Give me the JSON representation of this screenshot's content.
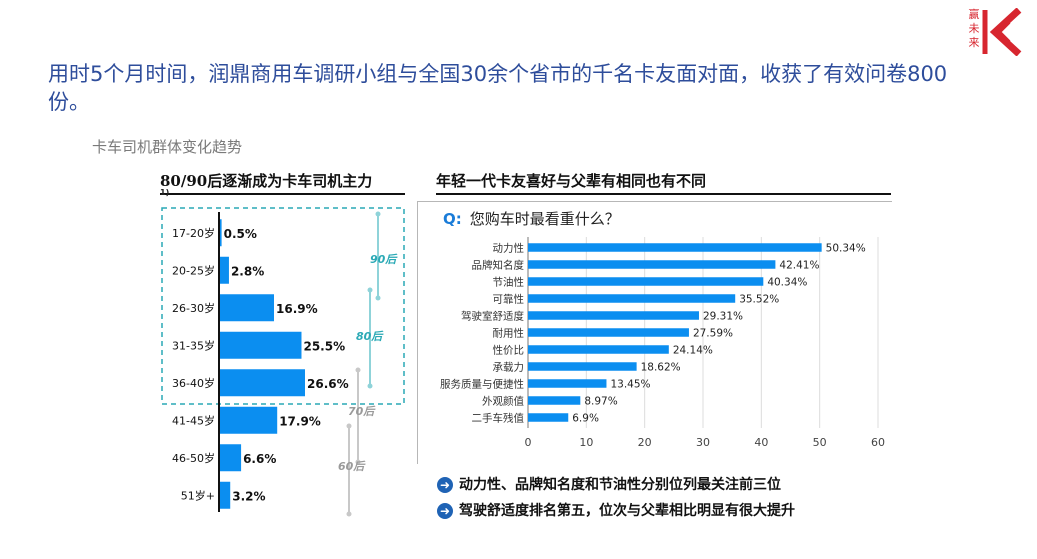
{
  "headline": "用时5个月时间，润鼎商用车调研小组与全国30余个省市的千名卡友面对面，收获了有效问卷800份。",
  "subtitle": "卡车司机群体变化趋势",
  "logo": {
    "text": "赢未来",
    "color": "#d7262f"
  },
  "left_panel": {
    "title": "80/90后逐渐成为卡车司机主力",
    "footnote": "1)"
  },
  "right_panel": {
    "title": "年轻一代卡友喜好与父辈有相同也有不同",
    "question_marker": "Q:",
    "question": "您购车时最看重什么？"
  },
  "findings": [
    "动力性、品牌知名度和节油性分别位列最关注前三位",
    "驾驶舒适度排名第五，位次与父辈相比明显有很大提升"
  ],
  "colors": {
    "bar": "#0b8ef0",
    "accent_teal": "#2aa9b5",
    "headline": "#2e4d9b"
  },
  "chart_data": [
    {
      "type": "bar",
      "orientation": "horizontal",
      "categories": [
        "17-20岁",
        "20-25岁",
        "26-30岁",
        "31-35岁",
        "36-40岁",
        "41-45岁",
        "46-50岁",
        "51岁+"
      ],
      "values": [
        0.5,
        2.8,
        16.9,
        25.5,
        26.6,
        17.9,
        6.6,
        3.2
      ],
      "data_labels": [
        "0.5%",
        "2.8%",
        "16.9%",
        "25.5%",
        "26.6%",
        "17.9%",
        "6.6%",
        "3.2%"
      ],
      "xlim": [
        0,
        30
      ],
      "generation_brackets": [
        "90后",
        "80后",
        "70后",
        "60后"
      ]
    },
    {
      "type": "bar",
      "orientation": "horizontal",
      "categories": [
        "动力性",
        "品牌知名度",
        "节油性",
        "可靠性",
        "驾驶室舒适度",
        "耐用性",
        "性价比",
        "承载力",
        "服务质量与便捷性",
        "外观颜值",
        "二手车残值"
      ],
      "values": [
        50.34,
        42.41,
        40.34,
        35.52,
        29.31,
        27.59,
        24.14,
        18.62,
        13.45,
        8.97,
        6.9
      ],
      "data_labels": [
        "50.34%",
        "42.41%",
        "40.34%",
        "35.52%",
        "29.31%",
        "27.59%",
        "24.14%",
        "18.62%",
        "13.45%",
        "8.97%",
        "6.9%"
      ],
      "xlim": [
        0,
        60
      ],
      "xticks": [
        "0",
        "10",
        "20",
        "30",
        "40",
        "50",
        "60"
      ]
    }
  ]
}
